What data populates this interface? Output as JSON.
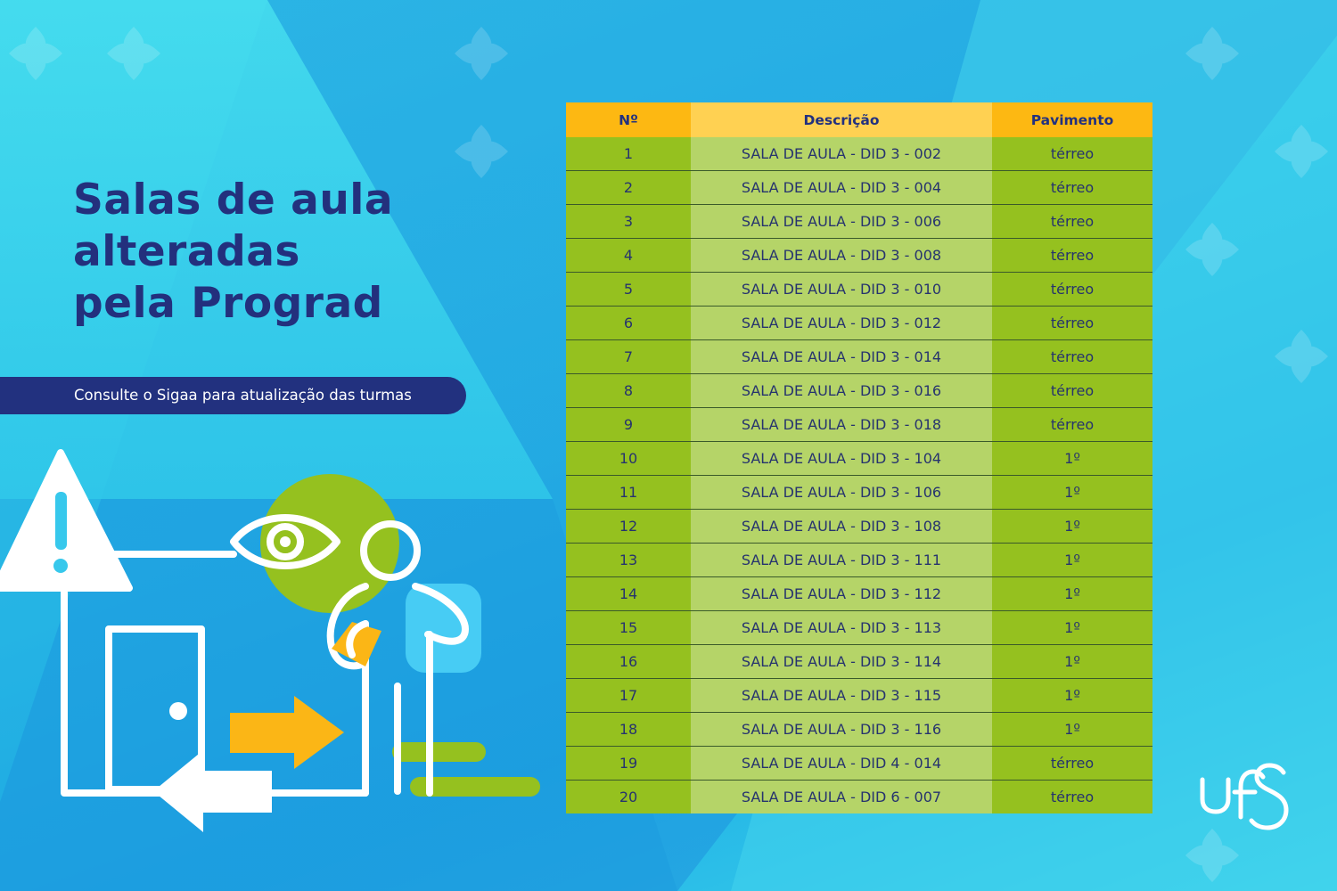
{
  "title": "Salas de aula\nalteradas\npela Prograd",
  "subtitle": "Consulte o Sigaa para atualização das turmas",
  "table": {
    "headers": [
      "Nº",
      "Descrição",
      "Pavimento"
    ],
    "rows": [
      [
        "1",
        "SALA DE AULA - DID 3 - 002",
        "térreo"
      ],
      [
        "2",
        "SALA DE AULA - DID 3 - 004",
        "térreo"
      ],
      [
        "3",
        "SALA DE AULA - DID 3 - 006",
        "térreo"
      ],
      [
        "4",
        "SALA DE AULA - DID 3 - 008",
        "térreo"
      ],
      [
        "5",
        "SALA DE AULA - DID 3 - 010",
        "térreo"
      ],
      [
        "6",
        "SALA DE AULA - DID 3 - 012",
        "térreo"
      ],
      [
        "7",
        "SALA DE AULA - DID 3 - 014",
        "térreo"
      ],
      [
        "8",
        "SALA DE AULA - DID 3 - 016",
        "térreo"
      ],
      [
        "9",
        "SALA DE AULA - DID 3 - 018",
        "térreo"
      ],
      [
        "10",
        "SALA DE AULA - DID 3 - 104",
        "1º"
      ],
      [
        "11",
        "SALA DE AULA - DID 3 - 106",
        "1º"
      ],
      [
        "12",
        "SALA DE AULA - DID 3 - 108",
        "1º"
      ],
      [
        "13",
        "SALA DE AULA - DID 3 - 111",
        "1º"
      ],
      [
        "14",
        "SALA DE AULA - DID 3 - 112",
        "1º"
      ],
      [
        "15",
        "SALA DE AULA - DID 3 - 113",
        "1º"
      ],
      [
        "16",
        "SALA DE AULA - DID 3 - 114",
        "1º"
      ],
      [
        "17",
        "SALA DE AULA - DID 3 - 115",
        "1º"
      ],
      [
        "18",
        "SALA DE AULA - DID 3 - 116",
        "1º"
      ],
      [
        "19",
        "SALA DE AULA - DID 4 - 014",
        "térreo"
      ],
      [
        "20",
        "SALA DE AULA - DID 6 - 007",
        "térreo"
      ]
    ]
  },
  "logo": {
    "text": "ufs"
  },
  "icons": [
    "warning-icon",
    "eye-icon",
    "door-icon",
    "arrow-right-icon",
    "arrow-left-icon",
    "person-icon"
  ],
  "colors": {
    "title": "#23307d",
    "pill": "#22317f",
    "header_orange": "#fdb812",
    "header_yellow": "#ffd152",
    "row_green": "#95c11f",
    "row_light_green": "#b5d468",
    "accent_orange": "#fbb616"
  }
}
